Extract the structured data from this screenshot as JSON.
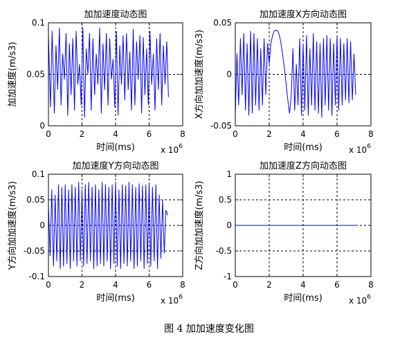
{
  "caption": "图 4  加加速度变化图",
  "chart_data": [
    {
      "type": "line",
      "title": "加加速度动态图",
      "xlabel": "时间(ms)",
      "ylabel": "加加速度(m/s3)",
      "x_exponent": "x 10",
      "x_exponent_power": "6",
      "xlim": [
        0,
        8
      ],
      "ylim": [
        0,
        0.1
      ],
      "xticks": [
        0,
        2,
        4,
        6,
        8
      ],
      "xtick_labels": [
        "0",
        "2",
        "4",
        "6",
        "8"
      ],
      "yticks": [
        0,
        0.05,
        0.1
      ],
      "ytick_labels": [
        "0",
        "0.05",
        "0.1"
      ],
      "grid": true,
      "series": [
        {
          "color": "#0000ff",
          "x": [
            0.0,
            0.12,
            0.22,
            0.35,
            0.45,
            0.55,
            0.65,
            0.75,
            0.85,
            0.95,
            1.05,
            1.15,
            1.25,
            1.35,
            1.45,
            1.55,
            1.65,
            1.75,
            1.85,
            1.95,
            2.05,
            2.15,
            2.25,
            2.35,
            2.45,
            2.55,
            2.65,
            2.75,
            2.85,
            2.95,
            3.05,
            3.15,
            3.25,
            3.35,
            3.45,
            3.55,
            3.65,
            3.75,
            3.85,
            3.95,
            4.05,
            4.15,
            4.25,
            4.35,
            4.45,
            4.55,
            4.65,
            4.75,
            4.85,
            4.95,
            5.05,
            5.15,
            5.25,
            5.35,
            5.45,
            5.55,
            5.65,
            5.75,
            5.85,
            5.95,
            6.05,
            6.15,
            6.25,
            6.35,
            6.45,
            6.55,
            6.65,
            6.75,
            6.85,
            6.95,
            7.05,
            7.15
          ],
          "y": [
            0.088,
            0.018,
            0.092,
            0.012,
            0.078,
            0.035,
            0.095,
            0.02,
            0.07,
            0.045,
            0.09,
            0.01,
            0.08,
            0.03,
            0.085,
            0.015,
            0.092,
            0.04,
            0.06,
            0.02,
            0.095,
            0.008,
            0.075,
            0.05,
            0.09,
            0.015,
            0.085,
            0.03,
            0.07,
            0.04,
            0.095,
            0.012,
            0.08,
            0.035,
            0.09,
            0.02,
            0.085,
            0.045,
            0.065,
            0.018,
            0.092,
            0.01,
            0.078,
            0.04,
            0.088,
            0.025,
            0.09,
            0.035,
            0.072,
            0.015,
            0.094,
            0.02,
            0.082,
            0.045,
            0.088,
            0.012,
            0.086,
            0.03,
            0.075,
            0.02,
            0.092,
            0.04,
            0.07,
            0.015,
            0.085,
            0.035,
            0.09,
            0.02,
            0.078,
            0.04,
            0.082,
            0.028
          ]
        }
      ]
    },
    {
      "type": "line",
      "title": "加加速度X方向动态图",
      "xlabel": "时间(ms)",
      "ylabel": "X方向加加速度(m/s3)",
      "x_exponent": "x 10",
      "x_exponent_power": "6",
      "xlim": [
        0,
        8
      ],
      "ylim": [
        -0.05,
        0.05
      ],
      "xticks": [
        0,
        2,
        4,
        6,
        8
      ],
      "xtick_labels": [
        "0",
        "2",
        "4",
        "6",
        "8"
      ],
      "yticks": [
        -0.05,
        0,
        0.05
      ],
      "ytick_labels": [
        "-0.05",
        "0",
        "0.05"
      ],
      "grid": true,
      "series": [
        {
          "color": "#0000ff",
          "x": [
            0.0,
            0.1,
            0.2,
            0.3,
            0.4,
            0.5,
            0.6,
            0.7,
            0.8,
            0.9,
            1.0,
            1.1,
            1.2,
            1.3,
            1.4,
            1.5,
            1.6,
            1.7,
            1.8,
            1.9,
            2.0,
            2.1,
            2.2,
            2.3,
            2.4,
            2.5,
            2.6,
            2.7,
            2.8,
            2.9,
            3.0,
            3.1,
            3.2,
            3.3,
            3.4,
            3.5,
            3.6,
            3.7,
            3.8,
            3.9,
            4.0,
            4.1,
            4.2,
            4.3,
            4.4,
            4.5,
            4.6,
            4.7,
            4.8,
            4.9,
            5.0,
            5.1,
            5.2,
            5.3,
            5.4,
            5.5,
            5.6,
            5.7,
            5.8,
            5.9,
            6.0,
            6.1,
            6.2,
            6.3,
            6.4,
            6.5,
            6.6,
            6.7,
            6.8,
            6.9,
            7.0,
            7.1
          ],
          "y": [
            -0.04,
            0.02,
            -0.03,
            0.035,
            -0.02,
            0.04,
            -0.035,
            0.03,
            -0.04,
            0.042,
            -0.038,
            0.04,
            -0.03,
            0.035,
            -0.035,
            0.025,
            -0.03,
            0.035,
            -0.02,
            0.03,
            0.01,
            0.03,
            0.038,
            0.042,
            0.043,
            0.042,
            0.038,
            0.03,
            0.018,
            0.005,
            -0.01,
            -0.025,
            -0.038,
            -0.02,
            0.025,
            -0.035,
            0.01,
            -0.03,
            0.035,
            -0.04,
            0.03,
            -0.035,
            0.038,
            -0.04,
            0.025,
            -0.03,
            0.04,
            -0.035,
            0.032,
            -0.038,
            0.03,
            -0.042,
            0.035,
            -0.03,
            0.038,
            -0.035,
            0.035,
            -0.04,
            0.03,
            -0.03,
            0.038,
            -0.035,
            0.035,
            -0.03,
            0.03,
            -0.025,
            0.035,
            -0.028,
            0.032,
            -0.025,
            0.02,
            -0.02
          ]
        }
      ]
    },
    {
      "type": "line",
      "title": "加加速度Y方向动态图",
      "xlabel": "时间(ms)",
      "ylabel": "Y方向加加速度(m/s3)",
      "x_exponent": "x 10",
      "x_exponent_power": "6",
      "xlim": [
        0,
        8
      ],
      "ylim": [
        -0.1,
        0.1
      ],
      "xticks": [
        0,
        2,
        4,
        6,
        8
      ],
      "xtick_labels": [
        "0",
        "2",
        "4",
        "6",
        "8"
      ],
      "yticks": [
        -0.1,
        -0.05,
        0,
        0.05,
        0.1
      ],
      "ytick_labels": [
        "-0.1",
        "-0.05",
        "0",
        "0.05",
        "0.1"
      ],
      "grid": true,
      "series": [
        {
          "color": "#0000ff",
          "x": [
            0.0,
            0.1,
            0.2,
            0.3,
            0.4,
            0.5,
            0.6,
            0.7,
            0.8,
            0.9,
            1.0,
            1.1,
            1.2,
            1.3,
            1.4,
            1.5,
            1.6,
            1.7,
            1.8,
            1.9,
            2.0,
            2.1,
            2.2,
            2.3,
            2.4,
            2.5,
            2.6,
            2.7,
            2.8,
            2.9,
            3.0,
            3.1,
            3.2,
            3.3,
            3.4,
            3.5,
            3.6,
            3.7,
            3.8,
            3.9,
            4.0,
            4.1,
            4.2,
            4.3,
            4.4,
            4.5,
            4.6,
            4.7,
            4.8,
            4.9,
            5.0,
            5.1,
            5.2,
            5.3,
            5.4,
            5.5,
            5.6,
            5.7,
            5.8,
            5.9,
            6.0,
            6.1,
            6.2,
            6.3,
            6.4,
            6.5,
            6.6,
            6.7,
            6.8,
            6.9,
            7.0,
            7.1
          ],
          "y": [
            0.04,
            -0.06,
            0.07,
            -0.08,
            0.06,
            -0.07,
            0.08,
            -0.085,
            0.075,
            -0.08,
            0.08,
            -0.075,
            0.07,
            -0.085,
            0.08,
            -0.07,
            0.075,
            -0.08,
            0.085,
            -0.07,
            0.07,
            -0.08,
            0.08,
            -0.075,
            0.085,
            -0.07,
            0.075,
            -0.085,
            0.08,
            -0.08,
            0.07,
            -0.075,
            0.085,
            -0.08,
            0.08,
            -0.07,
            0.075,
            -0.085,
            0.08,
            -0.075,
            0.085,
            -0.08,
            0.07,
            -0.085,
            0.08,
            -0.075,
            0.078,
            -0.08,
            0.085,
            -0.07,
            0.08,
            -0.085,
            0.075,
            -0.08,
            0.082,
            -0.07,
            0.078,
            -0.085,
            0.08,
            -0.075,
            0.082,
            -0.08,
            0.075,
            -0.07,
            0.08,
            -0.085,
            0.06,
            -0.065,
            0.05,
            -0.055,
            0.03,
            0.02
          ]
        }
      ]
    },
    {
      "type": "line",
      "title": "加加速度Z方向动态图",
      "xlabel": "时间(ms)",
      "ylabel": "Z方向加加速度(m/s3)",
      "x_exponent": "x 10",
      "x_exponent_power": "6",
      "xlim": [
        0,
        8
      ],
      "ylim": [
        -1,
        1
      ],
      "xticks": [
        0,
        2,
        4,
        6,
        8
      ],
      "xtick_labels": [
        "0",
        "2",
        "4",
        "6",
        "8"
      ],
      "yticks": [
        -1,
        -0.5,
        0,
        0.5,
        1
      ],
      "ytick_labels": [
        "-1",
        "-0.5",
        "0",
        "0.5",
        "1"
      ],
      "grid": true,
      "series": [
        {
          "color": "#0000ff",
          "x": [
            0.0,
            7.15
          ],
          "y": [
            0,
            0
          ]
        }
      ]
    }
  ]
}
